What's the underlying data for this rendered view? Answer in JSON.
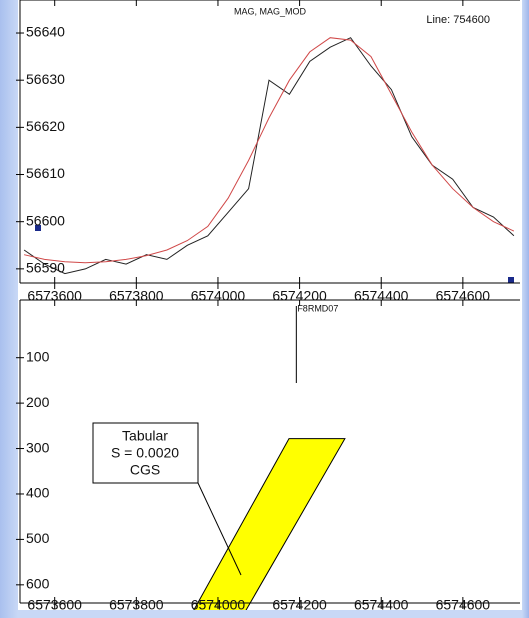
{
  "chart_data": [
    {
      "type": "line",
      "title": "MAG, MAG_MOD",
      "subtitle": "Line: 754600",
      "x": [
        6573525,
        6573575,
        6573625,
        6573675,
        6573725,
        6573775,
        6573825,
        6573875,
        6573925,
        6573975,
        6574025,
        6574075,
        6574125,
        6574175,
        6574225,
        6574275,
        6574325,
        6574375,
        6574425,
        6574475,
        6574525,
        6574575,
        6574625,
        6574675,
        6574725
      ],
      "series": [
        {
          "name": "MAG",
          "color": "#222222",
          "values": [
            56594,
            56591,
            56589,
            56590,
            56592,
            56591,
            56593,
            56592,
            56595,
            56597,
            56602,
            56607,
            56630,
            56627,
            56634,
            56637,
            56639,
            56633,
            56628,
            56618,
            56612,
            56609,
            56603,
            56601,
            56597
          ]
        },
        {
          "name": "MAG_MOD",
          "color": "#d04848",
          "values": [
            56593,
            56592,
            56591.5,
            56591.3,
            56591.5,
            56592,
            56592.8,
            56594,
            56596,
            56599,
            56605,
            56613,
            56622,
            56630,
            56636,
            56639,
            56638.5,
            56635,
            56627,
            56619,
            56612,
            56607,
            56603,
            56600,
            56598
          ]
        }
      ],
      "xlim": [
        6573515,
        6574740
      ],
      "ylim": [
        56587,
        56647
      ],
      "xticks": [
        6573600,
        6573800,
        6574000,
        6574200,
        6574400,
        6574600
      ],
      "yticks": [
        56590,
        56600,
        56610,
        56620,
        56630,
        56640
      ]
    },
    {
      "type": "polygon",
      "body": {
        "x": [
          6574174,
          6574311,
          6574066,
          6573938
        ],
        "depth": [
          278,
          278,
          660,
          660
        ],
        "color": "#ffff00"
      },
      "body_label": [
        "Tabular",
        "S = 0.0020",
        "CGS"
      ],
      "marker": {
        "label": "F8RMD07",
        "x": 6574192
      },
      "xlim": [
        6573515,
        6574740
      ],
      "ylim": [
        640,
        -27
      ],
      "xticks": [
        6573600,
        6573800,
        6574000,
        6574200,
        6574400,
        6574600
      ],
      "yticks": [
        100,
        200,
        300,
        400,
        500,
        600
      ]
    }
  ]
}
